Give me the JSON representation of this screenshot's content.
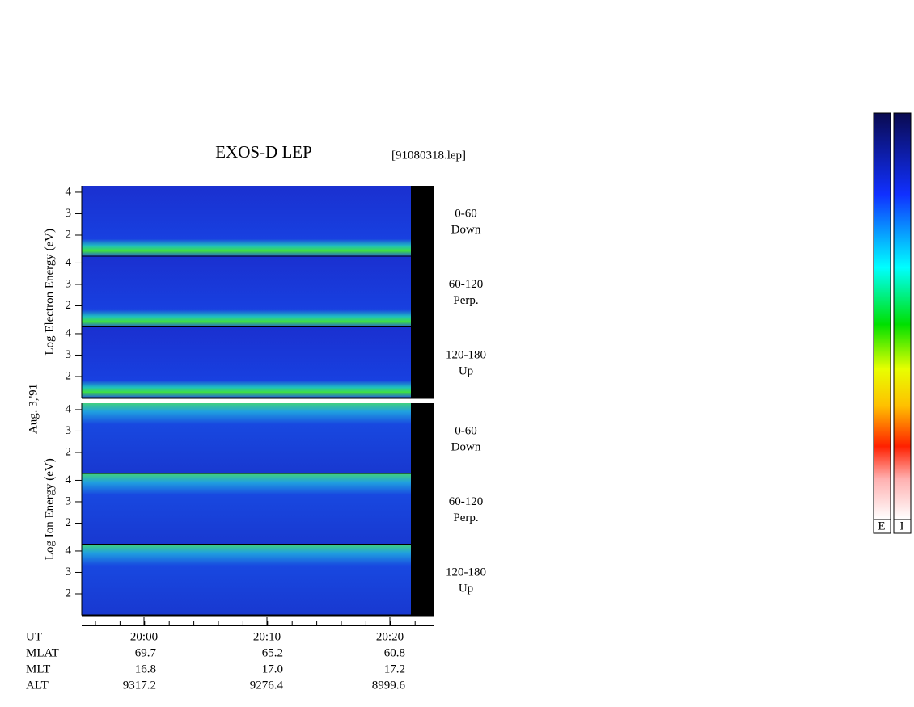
{
  "title": "EXOS-D LEP",
  "file": "[91080318.lep]",
  "date": "Aug. 3,'91",
  "energy_axis": {
    "ylim": [
      1,
      4.3
    ],
    "yticks": [
      2,
      3,
      4
    ]
  },
  "groups": [
    {
      "label": "Log Electron Energy (eV)",
      "panels": [
        [
          "0-60",
          "Down"
        ],
        [
          "60-120",
          "Perp."
        ],
        [
          "120-180",
          "Up"
        ]
      ]
    },
    {
      "label": "Log Ion Energy (eV)",
      "panels": [
        [
          "0-60",
          "Down"
        ],
        [
          "60-120",
          "Perp."
        ],
        [
          "120-180",
          "Up"
        ]
      ]
    }
  ],
  "time_ticks": [
    "20:00",
    "20:10",
    "20:20"
  ],
  "table": {
    "rows": [
      {
        "name": "UT"
      },
      {
        "name": "MLAT",
        "values": [
          "69.7",
          "65.2",
          "60.8"
        ]
      },
      {
        "name": "MLT",
        "values": [
          "16.8",
          "17.0",
          "17.2"
        ]
      },
      {
        "name": "ALT",
        "values": [
          "9317.2",
          "9276.4",
          "8999.6"
        ]
      }
    ]
  },
  "colorbar_labels": [
    "E",
    "I"
  ]
}
